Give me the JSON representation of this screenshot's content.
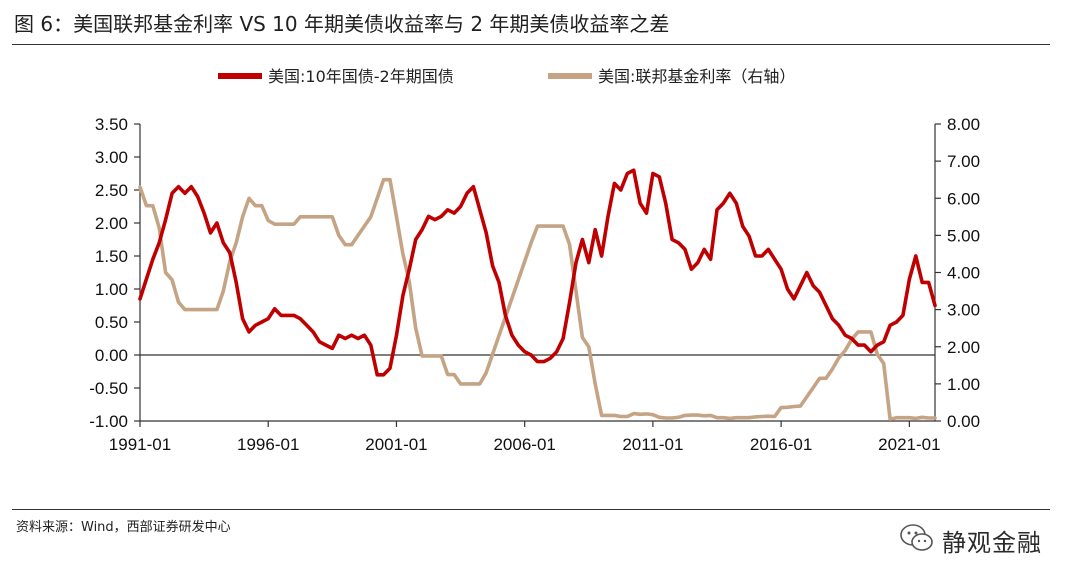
{
  "title": "图 6：美国联邦基金利率 VS 10 年期美债收益率与 2 年期美债收益率之差",
  "source": "资料来源：Wind，西部证券研发中心",
  "brand": {
    "name": "静观金融",
    "icon": "wechat-icon"
  },
  "colors": {
    "spread": "#c00000",
    "fedfunds": "#c4a484",
    "axis": "#333333"
  },
  "chart_data": {
    "type": "line",
    "legend_position": "top",
    "grid": false,
    "x_ticks": [
      "1991-01",
      "1996-01",
      "2001-01",
      "2006-01",
      "2011-01",
      "2016-01",
      "2021-01"
    ],
    "y_left": {
      "min": -1.0,
      "max": 3.5,
      "ticks": [
        "-1.00",
        "-0.50",
        "0.00",
        "0.50",
        "1.00",
        "1.50",
        "2.00",
        "2.50",
        "3.00",
        "3.50"
      ]
    },
    "y_right": {
      "min": 0.0,
      "max": 8.0,
      "ticks": [
        "0.00",
        "1.00",
        "2.00",
        "3.00",
        "4.00",
        "5.00",
        "6.00",
        "7.00",
        "8.00"
      ]
    },
    "series": [
      {
        "name": "美国:10年国债-2年期国债",
        "axis": "left",
        "points": [
          [
            "1991-01",
            0.85
          ],
          [
            "1991-04",
            1.15
          ],
          [
            "1991-07",
            1.45
          ],
          [
            "1991-10",
            1.7
          ],
          [
            "1992-01",
            2.05
          ],
          [
            "1992-04",
            2.45
          ],
          [
            "1992-07",
            2.55
          ],
          [
            "1992-10",
            2.45
          ],
          [
            "1993-01",
            2.55
          ],
          [
            "1993-04",
            2.4
          ],
          [
            "1993-07",
            2.15
          ],
          [
            "1993-10",
            1.85
          ],
          [
            "1994-01",
            2.0
          ],
          [
            "1994-04",
            1.7
          ],
          [
            "1994-07",
            1.55
          ],
          [
            "1994-10",
            1.1
          ],
          [
            "1995-01",
            0.55
          ],
          [
            "1995-04",
            0.35
          ],
          [
            "1995-07",
            0.45
          ],
          [
            "1995-10",
            0.5
          ],
          [
            "1996-01",
            0.55
          ],
          [
            "1996-04",
            0.7
          ],
          [
            "1996-07",
            0.6
          ],
          [
            "1996-10",
            0.6
          ],
          [
            "1997-01",
            0.6
          ],
          [
            "1997-04",
            0.55
          ],
          [
            "1997-07",
            0.45
          ],
          [
            "1997-10",
            0.35
          ],
          [
            "1998-01",
            0.2
          ],
          [
            "1998-04",
            0.15
          ],
          [
            "1998-07",
            0.1
          ],
          [
            "1998-10",
            0.3
          ],
          [
            "1999-01",
            0.25
          ],
          [
            "1999-04",
            0.3
          ],
          [
            "1999-07",
            0.25
          ],
          [
            "1999-10",
            0.3
          ],
          [
            "2000-01",
            0.15
          ],
          [
            "2000-04",
            -0.3
          ],
          [
            "2000-07",
            -0.3
          ],
          [
            "2000-10",
            -0.2
          ],
          [
            "2001-01",
            0.3
          ],
          [
            "2001-04",
            0.9
          ],
          [
            "2001-07",
            1.3
          ],
          [
            "2001-10",
            1.75
          ],
          [
            "2002-01",
            1.9
          ],
          [
            "2002-04",
            2.1
          ],
          [
            "2002-07",
            2.05
          ],
          [
            "2002-10",
            2.1
          ],
          [
            "2003-01",
            2.2
          ],
          [
            "2003-04",
            2.15
          ],
          [
            "2003-07",
            2.25
          ],
          [
            "2003-10",
            2.45
          ],
          [
            "2004-01",
            2.55
          ],
          [
            "2004-04",
            2.2
          ],
          [
            "2004-07",
            1.85
          ],
          [
            "2004-10",
            1.35
          ],
          [
            "2005-01",
            1.1
          ],
          [
            "2005-04",
            0.6
          ],
          [
            "2005-07",
            0.3
          ],
          [
            "2005-10",
            0.15
          ],
          [
            "2006-01",
            0.05
          ],
          [
            "2006-04",
            0.0
          ],
          [
            "2006-07",
            -0.1
          ],
          [
            "2006-10",
            -0.1
          ],
          [
            "2007-01",
            -0.05
          ],
          [
            "2007-04",
            0.05
          ],
          [
            "2007-07",
            0.25
          ],
          [
            "2007-10",
            0.8
          ],
          [
            "2008-01",
            1.4
          ],
          [
            "2008-04",
            1.75
          ],
          [
            "2008-07",
            1.4
          ],
          [
            "2008-10",
            1.9
          ],
          [
            "2009-01",
            1.5
          ],
          [
            "2009-04",
            2.1
          ],
          [
            "2009-07",
            2.6
          ],
          [
            "2009-10",
            2.5
          ],
          [
            "2010-01",
            2.75
          ],
          [
            "2010-04",
            2.8
          ],
          [
            "2010-07",
            2.3
          ],
          [
            "2010-10",
            2.15
          ],
          [
            "2011-01",
            2.75
          ],
          [
            "2011-04",
            2.7
          ],
          [
            "2011-07",
            2.3
          ],
          [
            "2011-10",
            1.75
          ],
          [
            "2012-01",
            1.7
          ],
          [
            "2012-04",
            1.6
          ],
          [
            "2012-07",
            1.3
          ],
          [
            "2012-10",
            1.4
          ],
          [
            "2013-01",
            1.6
          ],
          [
            "2013-04",
            1.45
          ],
          [
            "2013-07",
            2.2
          ],
          [
            "2013-10",
            2.3
          ],
          [
            "2014-01",
            2.45
          ],
          [
            "2014-04",
            2.3
          ],
          [
            "2014-07",
            1.95
          ],
          [
            "2014-10",
            1.8
          ],
          [
            "2015-01",
            1.5
          ],
          [
            "2015-04",
            1.5
          ],
          [
            "2015-07",
            1.6
          ],
          [
            "2015-10",
            1.45
          ],
          [
            "2016-01",
            1.3
          ],
          [
            "2016-04",
            1.0
          ],
          [
            "2016-07",
            0.85
          ],
          [
            "2016-10",
            1.05
          ],
          [
            "2017-01",
            1.25
          ],
          [
            "2017-04",
            1.05
          ],
          [
            "2017-07",
            0.95
          ],
          [
            "2017-10",
            0.75
          ],
          [
            "2018-01",
            0.55
          ],
          [
            "2018-04",
            0.45
          ],
          [
            "2018-07",
            0.3
          ],
          [
            "2018-10",
            0.25
          ],
          [
            "2019-01",
            0.15
          ],
          [
            "2019-04",
            0.15
          ],
          [
            "2019-07",
            0.05
          ],
          [
            "2019-10",
            0.15
          ],
          [
            "2020-01",
            0.2
          ],
          [
            "2020-04",
            0.45
          ],
          [
            "2020-07",
            0.5
          ],
          [
            "2020-10",
            0.6
          ],
          [
            "2021-01",
            1.15
          ],
          [
            "2021-04",
            1.5
          ],
          [
            "2021-07",
            1.1
          ],
          [
            "2021-10",
            1.1
          ],
          [
            "2022-01",
            0.75
          ]
        ]
      },
      {
        "name": "美国:联邦基金利率（右轴）",
        "axis": "right",
        "points": [
          [
            "1991-01",
            6.3
          ],
          [
            "1991-04",
            5.8
          ],
          [
            "1991-07",
            5.8
          ],
          [
            "1991-10",
            5.2
          ],
          [
            "1992-01",
            4.0
          ],
          [
            "1992-04",
            3.8
          ],
          [
            "1992-07",
            3.2
          ],
          [
            "1992-10",
            3.0
          ],
          [
            "1993-01",
            3.0
          ],
          [
            "1993-04",
            3.0
          ],
          [
            "1993-07",
            3.0
          ],
          [
            "1993-10",
            3.0
          ],
          [
            "1994-01",
            3.0
          ],
          [
            "1994-04",
            3.5
          ],
          [
            "1994-07",
            4.3
          ],
          [
            "1994-10",
            4.8
          ],
          [
            "1995-01",
            5.5
          ],
          [
            "1995-04",
            6.0
          ],
          [
            "1995-07",
            5.8
          ],
          [
            "1995-10",
            5.8
          ],
          [
            "1996-01",
            5.4
          ],
          [
            "1996-04",
            5.3
          ],
          [
            "1996-07",
            5.3
          ],
          [
            "1996-10",
            5.3
          ],
          [
            "1997-01",
            5.3
          ],
          [
            "1997-04",
            5.5
          ],
          [
            "1997-07",
            5.5
          ],
          [
            "1997-10",
            5.5
          ],
          [
            "1998-01",
            5.5
          ],
          [
            "1998-04",
            5.5
          ],
          [
            "1998-07",
            5.5
          ],
          [
            "1998-10",
            5.0
          ],
          [
            "1999-01",
            4.75
          ],
          [
            "1999-04",
            4.75
          ],
          [
            "1999-07",
            5.0
          ],
          [
            "1999-10",
            5.25
          ],
          [
            "2000-01",
            5.5
          ],
          [
            "2000-04",
            6.0
          ],
          [
            "2000-07",
            6.5
          ],
          [
            "2000-10",
            6.5
          ],
          [
            "2001-01",
            5.5
          ],
          [
            "2001-04",
            4.5
          ],
          [
            "2001-07",
            3.75
          ],
          [
            "2001-10",
            2.5
          ],
          [
            "2002-01",
            1.75
          ],
          [
            "2002-04",
            1.75
          ],
          [
            "2002-07",
            1.75
          ],
          [
            "2002-10",
            1.75
          ],
          [
            "2003-01",
            1.25
          ],
          [
            "2003-04",
            1.25
          ],
          [
            "2003-07",
            1.0
          ],
          [
            "2003-10",
            1.0
          ],
          [
            "2004-01",
            1.0
          ],
          [
            "2004-04",
            1.0
          ],
          [
            "2004-07",
            1.3
          ],
          [
            "2004-10",
            1.8
          ],
          [
            "2005-01",
            2.3
          ],
          [
            "2005-04",
            2.8
          ],
          [
            "2005-07",
            3.3
          ],
          [
            "2005-10",
            3.8
          ],
          [
            "2006-01",
            4.3
          ],
          [
            "2006-04",
            4.8
          ],
          [
            "2006-07",
            5.25
          ],
          [
            "2006-10",
            5.25
          ],
          [
            "2007-01",
            5.25
          ],
          [
            "2007-04",
            5.25
          ],
          [
            "2007-07",
            5.25
          ],
          [
            "2007-10",
            4.75
          ],
          [
            "2008-01",
            3.5
          ],
          [
            "2008-04",
            2.25
          ],
          [
            "2008-07",
            2.0
          ],
          [
            "2008-10",
            1.0
          ],
          [
            "2009-01",
            0.15
          ],
          [
            "2009-04",
            0.15
          ],
          [
            "2009-07",
            0.15
          ],
          [
            "2009-10",
            0.12
          ],
          [
            "2010-01",
            0.12
          ],
          [
            "2010-04",
            0.2
          ],
          [
            "2010-07",
            0.18
          ],
          [
            "2010-10",
            0.19
          ],
          [
            "2011-01",
            0.17
          ],
          [
            "2011-04",
            0.1
          ],
          [
            "2011-07",
            0.08
          ],
          [
            "2011-10",
            0.08
          ],
          [
            "2012-01",
            0.1
          ],
          [
            "2012-04",
            0.15
          ],
          [
            "2012-07",
            0.16
          ],
          [
            "2012-10",
            0.16
          ],
          [
            "2013-01",
            0.14
          ],
          [
            "2013-04",
            0.15
          ],
          [
            "2013-07",
            0.09
          ],
          [
            "2013-10",
            0.09
          ],
          [
            "2014-01",
            0.07
          ],
          [
            "2014-04",
            0.09
          ],
          [
            "2014-07",
            0.09
          ],
          [
            "2014-10",
            0.09
          ],
          [
            "2015-01",
            0.11
          ],
          [
            "2015-04",
            0.12
          ],
          [
            "2015-07",
            0.13
          ],
          [
            "2015-10",
            0.12
          ],
          [
            "2016-01",
            0.36
          ],
          [
            "2016-04",
            0.37
          ],
          [
            "2016-07",
            0.39
          ],
          [
            "2016-10",
            0.4
          ],
          [
            "2017-01",
            0.65
          ],
          [
            "2017-04",
            0.9
          ],
          [
            "2017-07",
            1.15
          ],
          [
            "2017-10",
            1.15
          ],
          [
            "2018-01",
            1.4
          ],
          [
            "2018-04",
            1.7
          ],
          [
            "2018-07",
            1.9
          ],
          [
            "2018-10",
            2.2
          ],
          [
            "2019-01",
            2.4
          ],
          [
            "2019-04",
            2.4
          ],
          [
            "2019-07",
            2.4
          ],
          [
            "2019-10",
            1.8
          ],
          [
            "2020-01",
            1.55
          ],
          [
            "2020-04",
            0.05
          ],
          [
            "2020-07",
            0.09
          ],
          [
            "2020-10",
            0.09
          ],
          [
            "2021-01",
            0.09
          ],
          [
            "2021-04",
            0.07
          ],
          [
            "2021-07",
            0.1
          ],
          [
            "2021-10",
            0.08
          ],
          [
            "2022-01",
            0.08
          ]
        ]
      }
    ]
  }
}
